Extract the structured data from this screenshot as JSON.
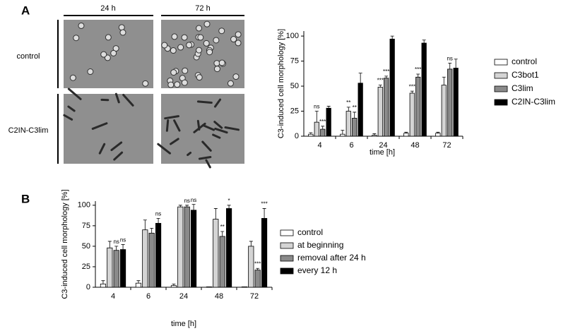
{
  "figure": {
    "panel_labels": [
      "A",
      "B"
    ],
    "image_columns": [
      "24 h",
      "72 h"
    ],
    "image_rows": [
      "control",
      "C2IN-C3lim"
    ]
  },
  "chart_data": [
    {
      "type": "bar",
      "ylabel": "C3-induced cell morphology [%]",
      "xlabel": "time [h]",
      "categories": [
        "4",
        "6",
        "24",
        "48",
        "72"
      ],
      "ylim": [
        0,
        105
      ],
      "yticks": [
        0,
        25,
        50,
        75,
        100
      ],
      "series": [
        {
          "name": "control",
          "color": "#ffffff",
          "values": [
            2,
            2,
            1,
            3,
            3
          ],
          "errors": [
            1.5,
            4,
            1.5,
            1,
            1
          ],
          "annotations": [
            null,
            null,
            null,
            null,
            null
          ]
        },
        {
          "name": "C3bot1",
          "color": "#d4d4d4",
          "values": [
            14,
            25,
            49,
            43,
            51
          ],
          "errors": [
            11,
            4,
            2,
            2,
            8
          ],
          "annotations": [
            "ns",
            "**",
            "***",
            "***",
            null
          ]
        },
        {
          "name": "C3lim",
          "color": "#8a8a8a",
          "values": [
            7,
            18,
            58,
            59,
            67
          ],
          "errors": [
            3,
            6,
            2,
            3,
            6
          ],
          "annotations": [
            "***",
            "**",
            "***",
            "***",
            "ns"
          ]
        },
        {
          "name": "C2IN-C3lim",
          "color": "#000000",
          "values": [
            28,
            53,
            97,
            93,
            68
          ],
          "errors": [
            2,
            10,
            3,
            3,
            9
          ],
          "annotations": [
            null,
            null,
            null,
            null,
            null
          ]
        }
      ]
    },
    {
      "type": "bar",
      "ylabel": "C3-induced cell morphology [%]",
      "xlabel": "time [h]",
      "categories": [
        "4",
        "6",
        "24",
        "48",
        "72"
      ],
      "ylim": [
        0,
        105
      ],
      "yticks": [
        0,
        25,
        50,
        75,
        100
      ],
      "series": [
        {
          "name": "control",
          "color": "#ffffff",
          "values": [
            4,
            5,
            2,
            0.5,
            0.5
          ],
          "errors": [
            4,
            3,
            2,
            0,
            0
          ],
          "annotations": [
            null,
            null,
            null,
            null,
            null
          ]
        },
        {
          "name": "at beginning",
          "color": "#d4d4d4",
          "values": [
            48,
            70,
            98,
            83,
            50
          ],
          "errors": [
            8,
            12,
            2,
            13,
            6
          ],
          "annotations": [
            null,
            null,
            null,
            null,
            null
          ]
        },
        {
          "name": "removal after 24 h",
          "color": "#8a8a8a",
          "values": [
            45,
            66,
            98,
            62,
            21
          ],
          "errors": [
            5,
            6,
            2,
            6,
            2
          ],
          "annotations": [
            "ns",
            null,
            "ns",
            "**",
            "***"
          ]
        },
        {
          "name": "every 12 h",
          "color": "#000000",
          "values": [
            46,
            78,
            94,
            96,
            84
          ],
          "errors": [
            6,
            6,
            7,
            4,
            12
          ],
          "annotations": [
            "ns",
            "ns",
            "ns",
            "*",
            "***"
          ]
        }
      ]
    }
  ]
}
